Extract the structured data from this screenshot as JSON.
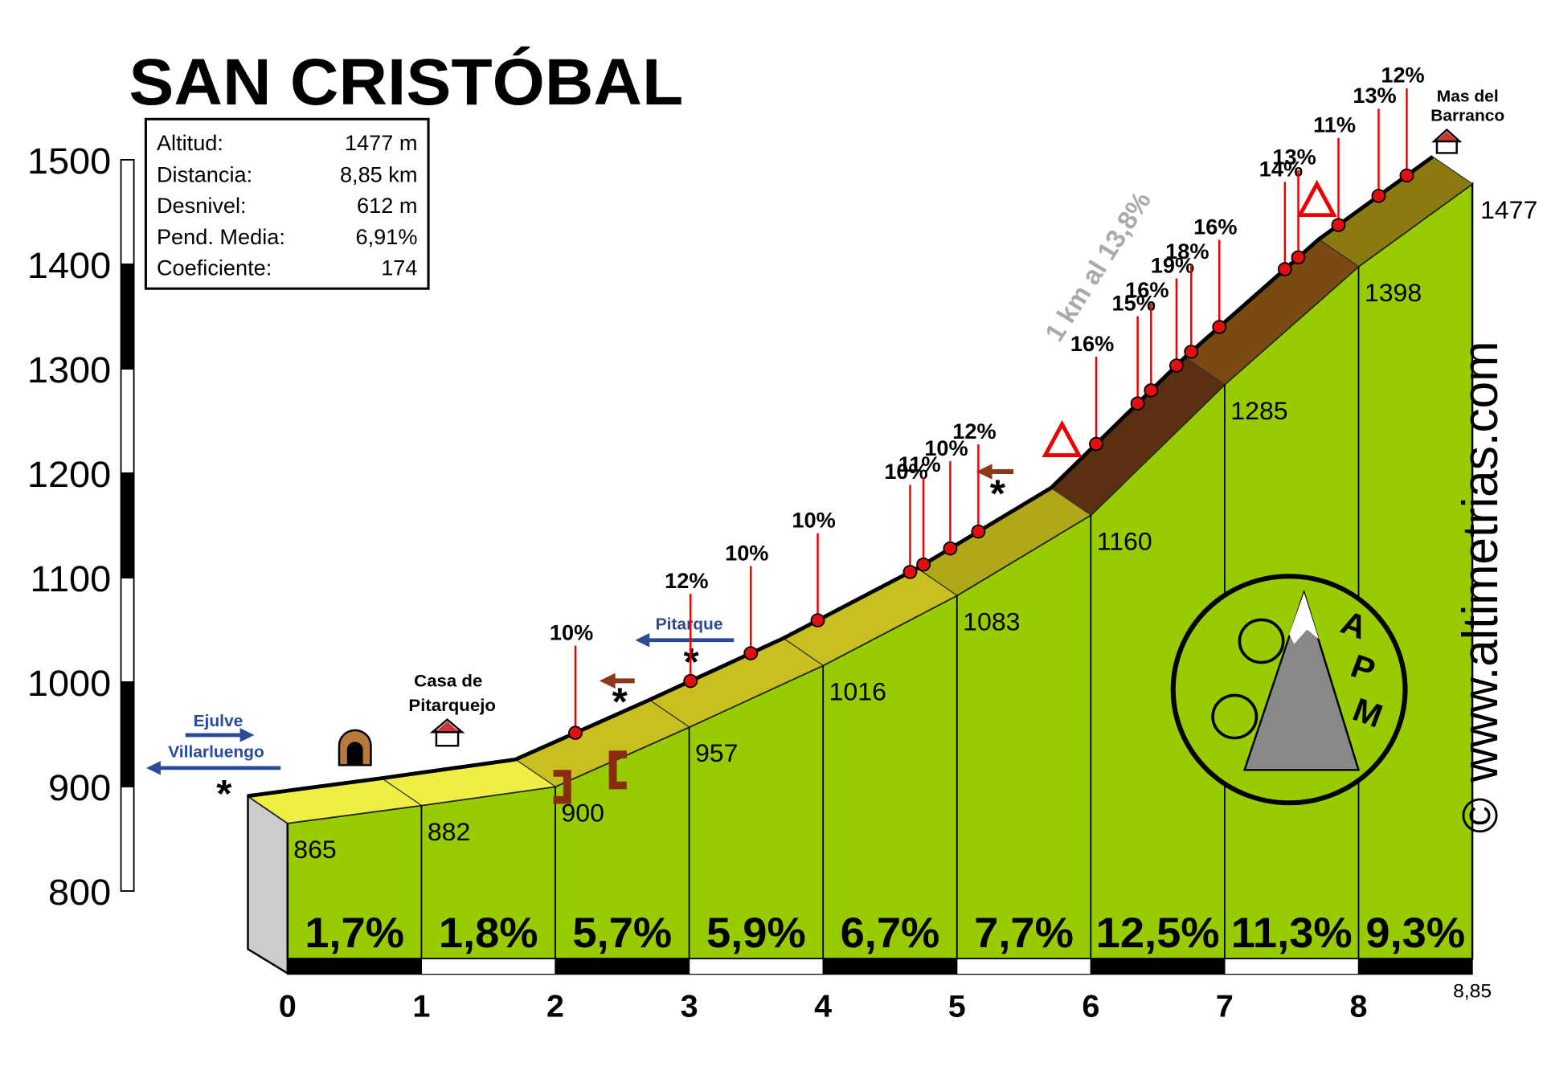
{
  "chart_data": {
    "type": "elevation-profile",
    "title": "SAN CRISTÓBAL",
    "info": [
      [
        "Altitud:",
        "1477 m"
      ],
      [
        "Distancia:",
        "8,85 km"
      ],
      [
        "Desnivel:",
        "612 m"
      ],
      [
        "Pend. Media:",
        "6,91%"
      ],
      [
        "Coeficiente:",
        "174"
      ]
    ],
    "x": [
      0,
      1,
      2,
      3,
      4,
      5,
      6,
      7,
      8,
      8.85
    ],
    "values": [
      865,
      882,
      900,
      957,
      1016,
      1083,
      1160,
      1285,
      1398,
      1477
    ],
    "segments": {
      "values": [
        1.7,
        1.8,
        5.7,
        5.9,
        6.7,
        7.7,
        12.5,
        11.3,
        9.3
      ],
      "value_labels": [
        "1,7%",
        "1,8%",
        "5,7%",
        "5,9%",
        "6,7%",
        "7,7%",
        "12,5%",
        "11,3%",
        "9,3%"
      ]
    },
    "ramps": {
      "x": [
        2.15,
        3.01,
        3.46,
        3.96,
        4.65,
        4.75,
        4.95,
        5.16,
        6.04,
        6.35,
        6.45,
        6.64,
        6.75,
        6.96,
        7.45,
        7.55,
        7.85,
        8.15,
        8.36
      ],
      "values": [
        10,
        12,
        10,
        10,
        10,
        11,
        10,
        12,
        16,
        15,
        16,
        19,
        18,
        16,
        14,
        13,
        11,
        13,
        12
      ],
      "value_labels": [
        "10%",
        "12%",
        "10%",
        "10%",
        "10%",
        "11%",
        "10%",
        "12%",
        "16%",
        "15%",
        "16%",
        "19%",
        "18%",
        "16%",
        "14%",
        "13%",
        "11%",
        "13%",
        "12%"
      ]
    },
    "xlim": [
      0,
      8.85
    ],
    "xticks": [
      0,
      1,
      2,
      3,
      4,
      5,
      6,
      7,
      8,
      {
        "value": 8.85,
        "label": "8,85"
      }
    ],
    "ylim": [
      800,
      1500
    ],
    "yticks": [
      800,
      900,
      1000,
      1100,
      1200,
      1300,
      1400,
      1500
    ],
    "places": [
      [
        "Casa de",
        "Pitarquejo"
      ],
      [
        "Mas del",
        "Barranco"
      ]
    ],
    "directions": [
      "Ejulve",
      "Villarluengo",
      "Pitarque"
    ],
    "annotation": "1 km al 13,8%",
    "website": "www.altimetrias.com",
    "copyright": "©",
    "logo": [
      "A",
      "P",
      "M"
    ]
  }
}
